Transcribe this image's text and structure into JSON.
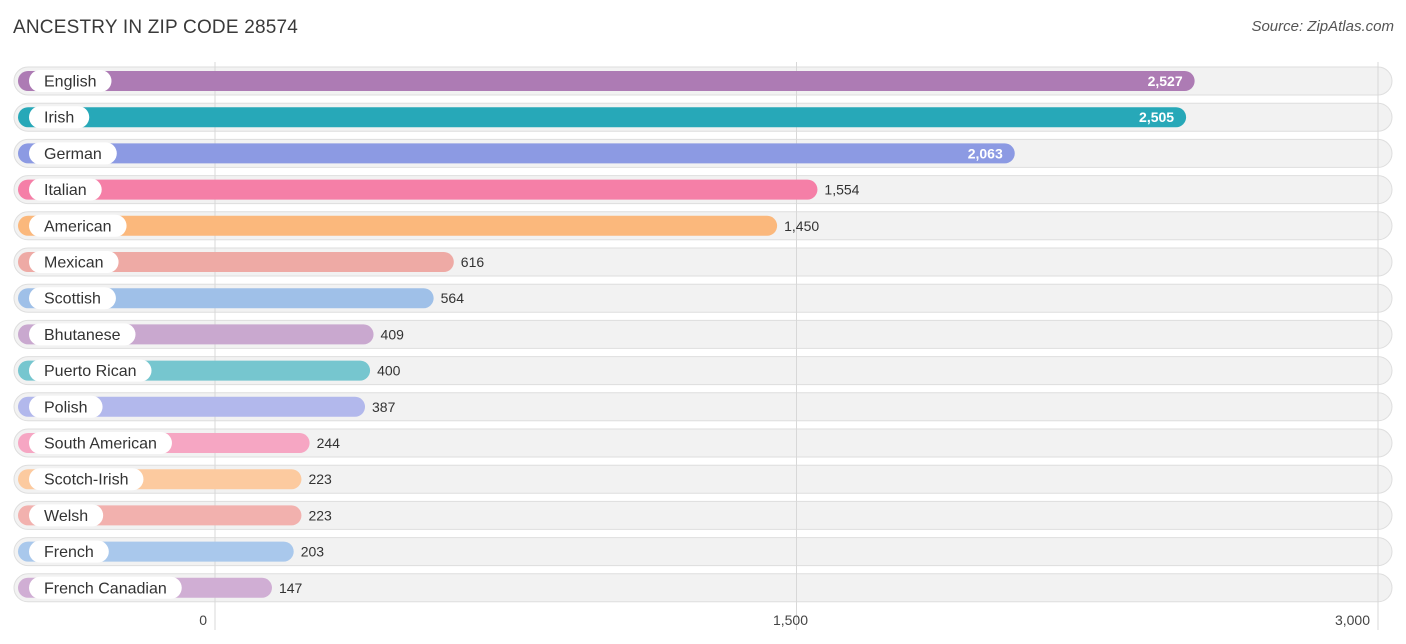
{
  "header": {
    "title": "ANCESTRY IN ZIP CODE 28574",
    "source": "Source: ZipAtlas.com"
  },
  "chart_data": {
    "type": "bar",
    "orientation": "horizontal",
    "title": "ANCESTRY IN ZIP CODE 28574",
    "xlim": [
      0,
      3000
    ],
    "ticks": [
      0,
      1500,
      3000
    ],
    "tick_labels": [
      "0",
      "1,500",
      "3,000"
    ],
    "grid": true,
    "categories": [
      "English",
      "Irish",
      "German",
      "Italian",
      "American",
      "Mexican",
      "Scottish",
      "Bhutanese",
      "Puerto Rican",
      "Polish",
      "South American",
      "Scotch-Irish",
      "Welsh",
      "French",
      "French Canadian"
    ],
    "values": [
      2527,
      2505,
      2063,
      1554,
      1450,
      616,
      564,
      409,
      400,
      387,
      244,
      223,
      223,
      203,
      147
    ],
    "value_labels": [
      "2,527",
      "2,505",
      "2,063",
      "1,554",
      "1,450",
      "616",
      "564",
      "409",
      "400",
      "387",
      "244",
      "223",
      "223",
      "203",
      "147"
    ],
    "colors": [
      "#ad7bb4",
      "#27a8b8",
      "#8c9ae3",
      "#f57fa7",
      "#fbb87c",
      "#eeaaa5",
      "#9fc0e8",
      "#c9a8cf",
      "#76c6cf",
      "#b2b8ec",
      "#f6a6c3",
      "#fcca9f",
      "#f2b1ae",
      "#a9c8ec",
      "#d0aed4"
    ]
  }
}
